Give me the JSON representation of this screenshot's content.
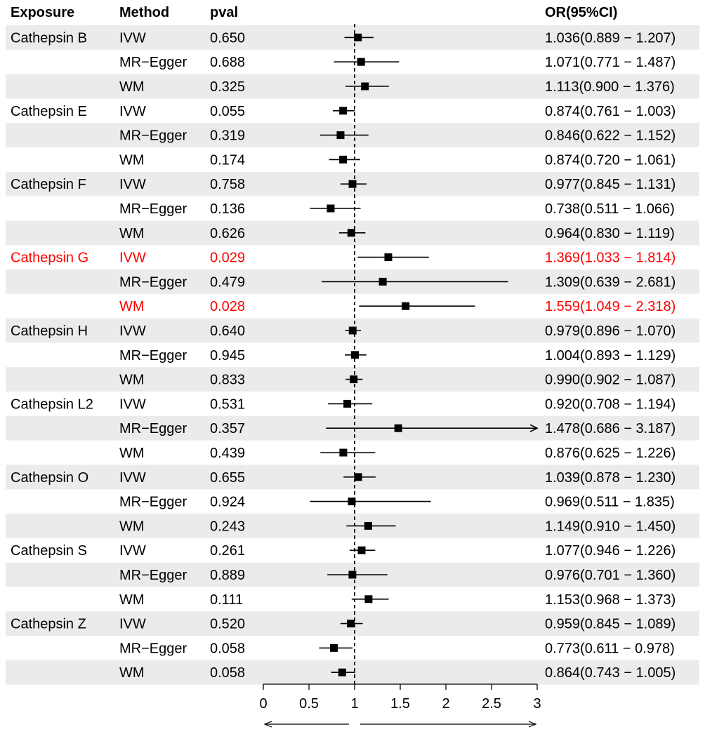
{
  "chart_data": {
    "type": "forest",
    "headers": {
      "exposure": "Exposure",
      "method": "Method",
      "pval": "pval",
      "or": "OR(95%CI)"
    },
    "xlim": [
      0,
      3
    ],
    "xticks": [
      0,
      0.5,
      1,
      1.5,
      2,
      2.5,
      3
    ],
    "xtick_labels": [
      "0",
      "0.5",
      "1",
      "1.5",
      "2",
      "2.5",
      "3"
    ],
    "reference_line": 1,
    "colors": {
      "normal": "#000000",
      "significant": "#ff0000",
      "stripe": "#ebebeb"
    },
    "rows": [
      {
        "exposure": "Cathepsin B",
        "method": "IVW",
        "pval": "0.650",
        "or": 1.036,
        "lo": 0.889,
        "hi": 1.207,
        "or_text": "1.036(0.889 − 1.207)",
        "significant": false
      },
      {
        "exposure": "",
        "method": "MR−Egger",
        "pval": "0.688",
        "or": 1.071,
        "lo": 0.771,
        "hi": 1.487,
        "or_text": "1.071(0.771 − 1.487)",
        "significant": false
      },
      {
        "exposure": "",
        "method": "WM",
        "pval": "0.325",
        "or": 1.113,
        "lo": 0.9,
        "hi": 1.376,
        "or_text": "1.113(0.900 − 1.376)",
        "significant": false
      },
      {
        "exposure": "Cathepsin E",
        "method": "IVW",
        "pval": "0.055",
        "or": 0.874,
        "lo": 0.761,
        "hi": 1.003,
        "or_text": "0.874(0.761 − 1.003)",
        "significant": false
      },
      {
        "exposure": "",
        "method": "MR−Egger",
        "pval": "0.319",
        "or": 0.846,
        "lo": 0.622,
        "hi": 1.152,
        "or_text": "0.846(0.622 − 1.152)",
        "significant": false
      },
      {
        "exposure": "",
        "method": "WM",
        "pval": "0.174",
        "or": 0.874,
        "lo": 0.72,
        "hi": 1.061,
        "or_text": "0.874(0.720 − 1.061)",
        "significant": false
      },
      {
        "exposure": "Cathepsin F",
        "method": "IVW",
        "pval": "0.758",
        "or": 0.977,
        "lo": 0.845,
        "hi": 1.131,
        "or_text": "0.977(0.845 − 1.131)",
        "significant": false
      },
      {
        "exposure": "",
        "method": "MR−Egger",
        "pval": "0.136",
        "or": 0.738,
        "lo": 0.511,
        "hi": 1.066,
        "or_text": "0.738(0.511 − 1.066)",
        "significant": false
      },
      {
        "exposure": "",
        "method": "WM",
        "pval": "0.626",
        "or": 0.964,
        "lo": 0.83,
        "hi": 1.119,
        "or_text": "0.964(0.830 − 1.119)",
        "significant": false
      },
      {
        "exposure": "Cathepsin G",
        "method": "IVW",
        "pval": "0.029",
        "or": 1.369,
        "lo": 1.033,
        "hi": 1.814,
        "or_text": "1.369(1.033 − 1.814)",
        "significant": true
      },
      {
        "exposure": "",
        "method": "MR−Egger",
        "pval": "0.479",
        "or": 1.309,
        "lo": 0.639,
        "hi": 2.681,
        "or_text": "1.309(0.639 − 2.681)",
        "significant": false
      },
      {
        "exposure": "",
        "method": "WM",
        "pval": "0.028",
        "or": 1.559,
        "lo": 1.049,
        "hi": 2.318,
        "or_text": "1.559(1.049 − 2.318)",
        "significant": true
      },
      {
        "exposure": "Cathepsin H",
        "method": "IVW",
        "pval": "0.640",
        "or": 0.979,
        "lo": 0.896,
        "hi": 1.07,
        "or_text": "0.979(0.896 − 1.070)",
        "significant": false
      },
      {
        "exposure": "",
        "method": "MR−Egger",
        "pval": "0.945",
        "or": 1.004,
        "lo": 0.893,
        "hi": 1.129,
        "or_text": "1.004(0.893 − 1.129)",
        "significant": false
      },
      {
        "exposure": "",
        "method": "WM",
        "pval": "0.833",
        "or": 0.99,
        "lo": 0.902,
        "hi": 1.087,
        "or_text": "0.990(0.902 − 1.087)",
        "significant": false
      },
      {
        "exposure": "Cathepsin L2",
        "method": "IVW",
        "pval": "0.531",
        "or": 0.92,
        "lo": 0.708,
        "hi": 1.194,
        "or_text": "0.920(0.708 − 1.194)",
        "significant": false
      },
      {
        "exposure": "",
        "method": "MR−Egger",
        "pval": "0.357",
        "or": 1.478,
        "lo": 0.686,
        "hi": 3.187,
        "or_text": "1.478(0.686 − 3.187)",
        "significant": false
      },
      {
        "exposure": "",
        "method": "WM",
        "pval": "0.439",
        "or": 0.876,
        "lo": 0.625,
        "hi": 1.226,
        "or_text": "0.876(0.625 − 1.226)",
        "significant": false
      },
      {
        "exposure": "Cathepsin O",
        "method": "IVW",
        "pval": "0.655",
        "or": 1.039,
        "lo": 0.878,
        "hi": 1.23,
        "or_text": "1.039(0.878 − 1.230)",
        "significant": false
      },
      {
        "exposure": "",
        "method": "MR−Egger",
        "pval": "0.924",
        "or": 0.969,
        "lo": 0.511,
        "hi": 1.835,
        "or_text": "0.969(0.511 − 1.835)",
        "significant": false
      },
      {
        "exposure": "",
        "method": "WM",
        "pval": "0.243",
        "or": 1.149,
        "lo": 0.91,
        "hi": 1.45,
        "or_text": "1.149(0.910 − 1.450)",
        "significant": false
      },
      {
        "exposure": "Cathepsin S",
        "method": "IVW",
        "pval": "0.261",
        "or": 1.077,
        "lo": 0.946,
        "hi": 1.226,
        "or_text": "1.077(0.946 − 1.226)",
        "significant": false
      },
      {
        "exposure": "",
        "method": "MR−Egger",
        "pval": "0.889",
        "or": 0.976,
        "lo": 0.701,
        "hi": 1.36,
        "or_text": "0.976(0.701 − 1.360)",
        "significant": false
      },
      {
        "exposure": "",
        "method": "WM",
        "pval": "0.111",
        "or": 1.153,
        "lo": 0.968,
        "hi": 1.373,
        "or_text": "1.153(0.968 − 1.373)",
        "significant": false
      },
      {
        "exposure": "Cathepsin Z",
        "method": "IVW",
        "pval": "0.520",
        "or": 0.959,
        "lo": 0.845,
        "hi": 1.089,
        "or_text": "0.959(0.845 − 1.089)",
        "significant": false
      },
      {
        "exposure": "",
        "method": "MR−Egger",
        "pval": "0.058",
        "or": 0.773,
        "lo": 0.611,
        "hi": 0.978,
        "or_text": "0.773(0.611 − 0.978)",
        "significant": false
      },
      {
        "exposure": "",
        "method": "WM",
        "pval": "0.058",
        "or": 0.864,
        "lo": 0.743,
        "hi": 1.005,
        "or_text": "0.864(0.743 − 1.005)",
        "significant": false
      }
    ]
  }
}
